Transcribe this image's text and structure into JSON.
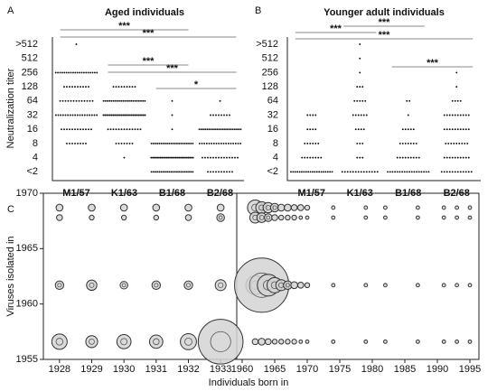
{
  "chart_data": [
    {
      "type": "dot",
      "label": "A",
      "title": "Aged individuals",
      "ylabel": "Neutralization titer",
      "titers": [
        ">512",
        "512",
        "256",
        "128",
        "64",
        "32",
        "16",
        "8",
        "4",
        "<2"
      ],
      "groups": [
        {
          "name": "M1/57",
          "counts": [
            1,
            0,
            20,
            10,
            13,
            18,
            12,
            8,
            0,
            0
          ]
        },
        {
          "name": "K1/63",
          "counts": [
            0,
            0,
            0,
            9,
            22,
            26,
            13,
            7,
            1,
            0
          ]
        },
        {
          "name": "B1/68",
          "counts": [
            0,
            0,
            0,
            0,
            1,
            1,
            1,
            22,
            28,
            22
          ]
        },
        {
          "name": "B2/68",
          "counts": [
            0,
            0,
            0,
            0,
            1,
            8,
            22,
            18,
            14,
            10
          ]
        }
      ],
      "brackets": [
        {
          "groups": [
            "M1/57",
            "B1/68"
          ],
          "label": "***"
        },
        {
          "groups": [
            "M1/57",
            "B2/68"
          ],
          "label": "***"
        },
        {
          "groups": [
            "K1/63",
            "B1/68"
          ],
          "label": "***"
        },
        {
          "groups": [
            "K1/63",
            "B2/68"
          ],
          "label": "***"
        },
        {
          "groups": [
            "B1/68",
            "B2/68"
          ],
          "label": "*"
        }
      ]
    },
    {
      "type": "dot",
      "label": "B",
      "title": "Younger adult individuals",
      "titers": [
        ">512",
        "512",
        "256",
        "128",
        "64",
        "32",
        "16",
        "8",
        "4",
        "<2"
      ],
      "groups": [
        {
          "name": "M1/57",
          "counts": [
            0,
            0,
            0,
            0,
            0,
            4,
            4,
            6,
            8,
            20
          ]
        },
        {
          "name": "K1/63",
          "counts": [
            1,
            1,
            1,
            3,
            5,
            6,
            4,
            3,
            3,
            14
          ]
        },
        {
          "name": "B1/68",
          "counts": [
            0,
            0,
            0,
            0,
            2,
            1,
            5,
            7,
            9,
            18
          ]
        },
        {
          "name": "B2/68",
          "counts": [
            0,
            0,
            1,
            1,
            4,
            10,
            10,
            9,
            10,
            12
          ]
        }
      ],
      "brackets": [
        {
          "groups": [
            "K1/63",
            "B1/68"
          ],
          "label": "***"
        },
        {
          "groups": [
            "M1/57",
            "K1/63"
          ],
          "label": "***"
        },
        {
          "groups": [
            "M1/57",
            "B2/68"
          ],
          "label": "***"
        },
        {
          "groups": [
            "B1/68",
            "B2/68"
          ],
          "label": "***"
        }
      ]
    },
    {
      "type": "bubble",
      "label": "C",
      "ylabel": "Viruses isolated in",
      "xlabel": "Individuals born in",
      "ylim": [
        1955,
        1970
      ],
      "yticks": [
        1955,
        1960,
        1965,
        1970
      ],
      "rows_y": [
        1968.7,
        1967.8,
        1961.7,
        1956.6
      ],
      "left": {
        "categories": [
          "1928",
          "1929",
          "1930",
          "1931",
          "1932",
          "1933"
        ],
        "sizes": [
          [
            4,
            4,
            4,
            4,
            4,
            4
          ],
          [
            3,
            2,
            2,
            2,
            3,
            5
          ],
          [
            6,
            9,
            5,
            6,
            6,
            10
          ],
          [
            20,
            12,
            17,
            15,
            22,
            170
          ]
        ]
      },
      "right": {
        "xlim": [
          1960,
          1995
        ],
        "xticks": [
          1960,
          1965,
          1970,
          1975,
          1980,
          1985,
          1990,
          1995
        ],
        "x": [
          1962,
          1963,
          1964,
          1965,
          1966,
          1967,
          1968,
          1969,
          1970,
          1974,
          1979,
          1982,
          1987,
          1991,
          1993,
          1995
        ],
        "sizes": [
          [
            20,
            12,
            9,
            6,
            4,
            4,
            3,
            3,
            2,
            1,
            1,
            1,
            1,
            1,
            1,
            1
          ],
          [
            10,
            8,
            5,
            3,
            2,
            2,
            2,
            1,
            1,
            1,
            1,
            1,
            1,
            1,
            1,
            1
          ],
          [
            30,
            250,
            40,
            20,
            10,
            6,
            4,
            3,
            2,
            1,
            1,
            1,
            1,
            1,
            1,
            1
          ],
          [
            3,
            4,
            3,
            2,
            2,
            2,
            2,
            1,
            1,
            1,
            1,
            1,
            1,
            1,
            1,
            1
          ]
        ]
      }
    }
  ]
}
